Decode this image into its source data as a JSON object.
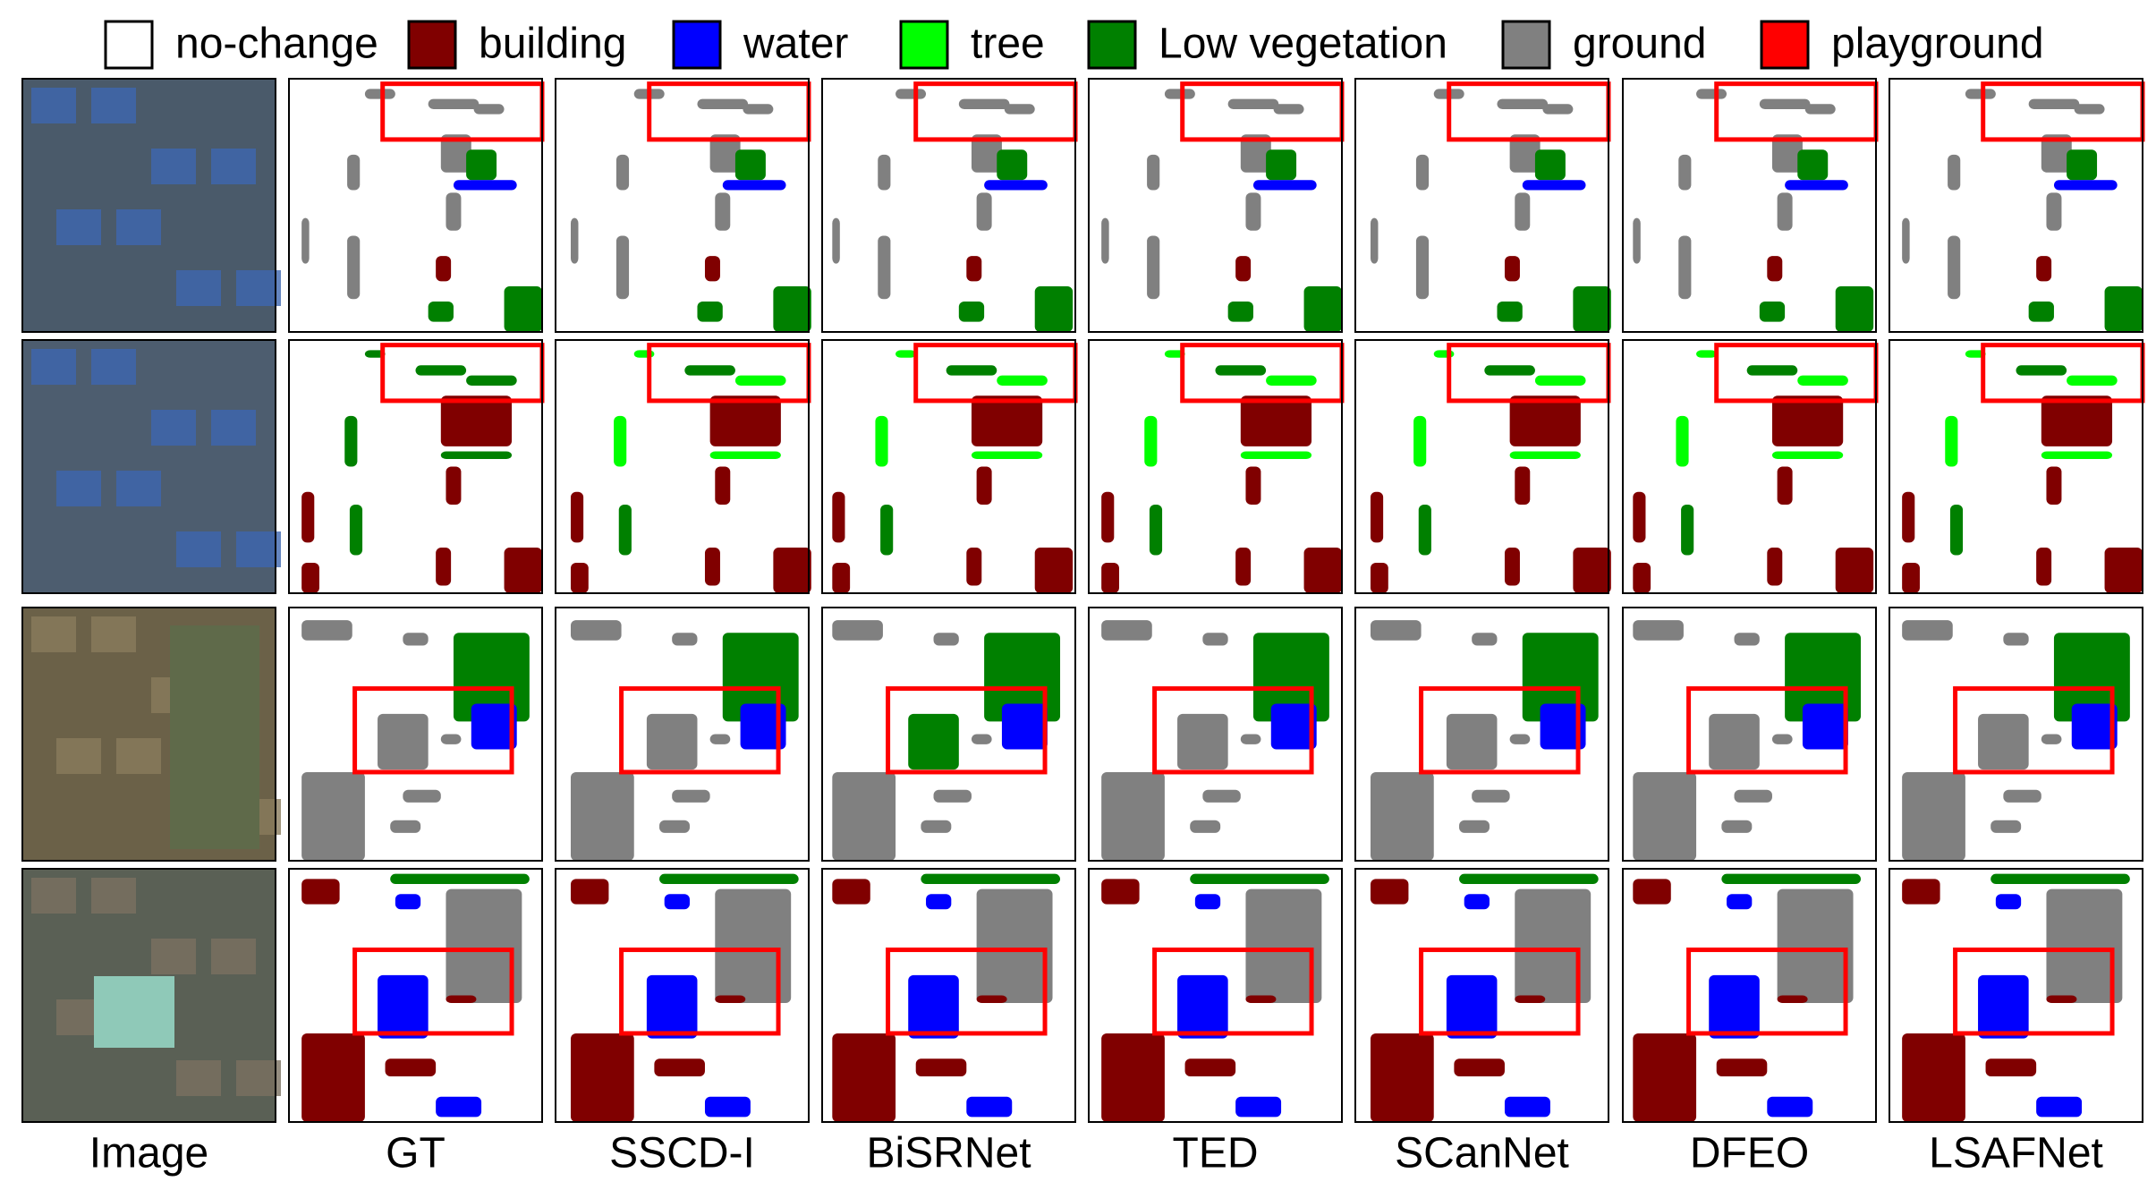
{
  "legend": [
    {
      "label": "no-change",
      "color": "#ffffff"
    },
    {
      "label": "building",
      "color": "#800000"
    },
    {
      "label": "water",
      "color": "#0000ff"
    },
    {
      "label": "tree",
      "color": "#00ff00"
    },
    {
      "label": "Low vegetation",
      "color": "#008000"
    },
    {
      "label": "ground",
      "color": "#808080"
    },
    {
      "label": "playground",
      "color": "#ff0000"
    }
  ],
  "columns": [
    "Image",
    "GT",
    "SSCD-I",
    "BiSRNet",
    "TED",
    "SCanNet",
    "DFEO",
    "LSAFNet"
  ]
}
